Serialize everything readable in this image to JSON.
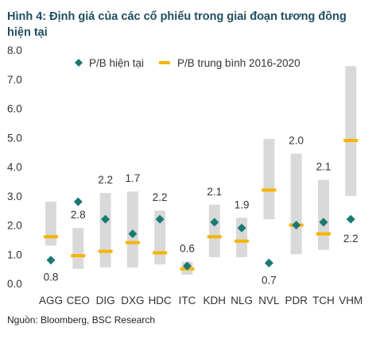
{
  "title": "Hình 4: Định giá của các cổ phiếu trong giai đoạn tương đồng hiện tại",
  "source": "Nguồn: Bloomberg, BSC Research",
  "colors": {
    "range": "#d9d9d9",
    "current": "#1a7a72",
    "average": "#f5b400"
  },
  "chart_data": {
    "type": "range-dot",
    "title": "Hình 4: Định giá của các cổ phiếu trong giai đoạn tương đồng hiện tại",
    "ylim": [
      0,
      8
    ],
    "yticks": [
      "0.0",
      "1.0",
      "2.0",
      "3.0",
      "4.0",
      "5.0",
      "6.0",
      "7.0",
      "8.0"
    ],
    "legend": {
      "placement": "top",
      "current": "P/B hiện tại",
      "average": "P/B trung bình 2016-2020"
    },
    "categories": [
      "AGG",
      "CEO",
      "DIG",
      "DXG",
      "HDC",
      "ITC",
      "KDH",
      "NLG",
      "NVL",
      "PDR",
      "TCH",
      "VHM"
    ],
    "range_low": [
      1.3,
      0.5,
      0.55,
      0.55,
      0.65,
      0.3,
      0.9,
      0.9,
      2.2,
      1.0,
      1.15,
      3.0
    ],
    "range_high": [
      2.8,
      1.9,
      3.1,
      3.15,
      2.5,
      0.75,
      2.7,
      2.25,
      4.95,
      4.45,
      3.55,
      7.45
    ],
    "average": [
      1.6,
      0.95,
      1.1,
      1.4,
      1.05,
      0.5,
      1.6,
      1.45,
      3.2,
      2.0,
      1.7,
      4.9
    ],
    "current": [
      0.8,
      2.8,
      2.2,
      1.7,
      2.2,
      0.6,
      2.1,
      1.9,
      0.7,
      2.0,
      2.1,
      2.2
    ],
    "current_labels": [
      "0.8",
      "2.8",
      "2.2",
      "1.7",
      "2.2",
      "0.6",
      "2.1",
      "1.9",
      "0.7",
      "2.0",
      "2.1",
      "2.2"
    ]
  }
}
